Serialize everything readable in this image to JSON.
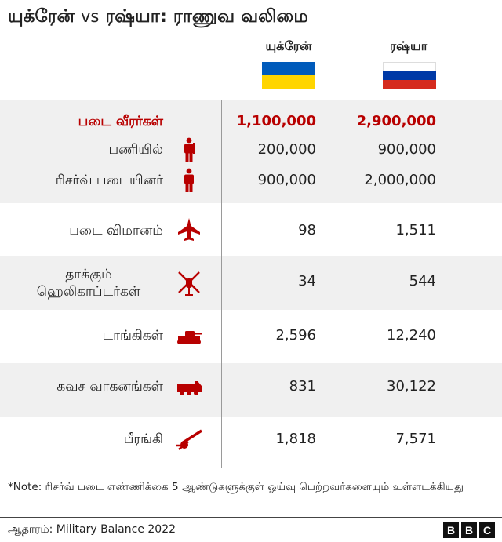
{
  "title": {
    "part1": "யுக்ரேன்",
    "vs": "vs",
    "part2": "ரஷ்யா: ராணுவ வலிமை"
  },
  "columns": {
    "ukraine": {
      "label": "யுக்ரேன்",
      "flag_colors": [
        "#005bbb",
        "#ffd500"
      ]
    },
    "russia": {
      "label": "ரஷ்யா",
      "flag_colors": [
        "#ffffff",
        "#0039a6",
        "#d52b1e"
      ]
    }
  },
  "colors": {
    "accent": "#b80000",
    "band": "#f0f0f0",
    "icon": "#b80000"
  },
  "chart_data": {
    "type": "table",
    "title": "யுக்ரேன் vs ரஷ்யா: ராணுவ வலிமை",
    "columns": [
      "யுக்ரேன்",
      "ரஷ்யா"
    ],
    "rows": [
      {
        "label": "படை வீரர்கள்",
        "ukraine": "1,100,000",
        "russia": "2,900,000",
        "icon": "",
        "total": true
      },
      {
        "label": "பணியில்",
        "ukraine": "200,000",
        "russia": "900,000",
        "icon": "soldier-icon"
      },
      {
        "label": "ரிசர்வ் படையினர்",
        "ukraine": "900,000",
        "russia": "2,000,000",
        "icon": "reservist-icon"
      },
      {
        "label": "படை விமானம்",
        "ukraine": "98",
        "russia": "1,511",
        "icon": "fighter-jet-icon"
      },
      {
        "label": "தாக்கும் ஹெலிகாப்டர்கள்",
        "ukraine": "34",
        "russia": "544",
        "icon": "helicopter-icon"
      },
      {
        "label": "டாங்கிகள்",
        "ukraine": "2,596",
        "russia": "12,240",
        "icon": "tank-icon"
      },
      {
        "label": "கவச வாகனங்கள்",
        "ukraine": "831",
        "russia": "30,122",
        "icon": "armoured-vehicle-icon"
      },
      {
        "label": "பீரங்கி",
        "ukraine": "1,818",
        "russia": "7,571",
        "icon": "artillery-icon"
      }
    ]
  },
  "note": "*Note: ரிசர்வ் படை எண்ணிக்கை 5 ஆண்டுகளுக்குள் ஓய்வு பெற்றவர்களையும் உள்ளடக்கியது",
  "source": "ஆதாரம்: Military Balance 2022",
  "logo": {
    "letters": [
      "B",
      "B",
      "C"
    ]
  }
}
